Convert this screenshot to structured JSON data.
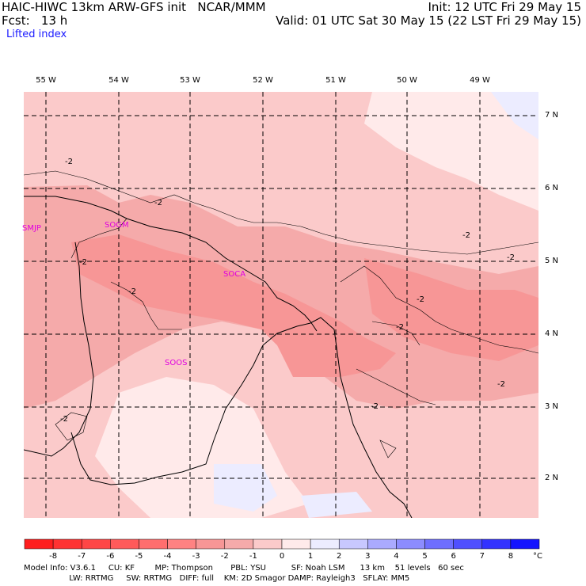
{
  "header": {
    "line1_left": "HAIC-HIWC 13km ARW-GFS init   NCAR/MMM",
    "line1_right": "Init: 12 UTC Fri 29 May 15",
    "line2_left": "Fcst:   13 h",
    "line2_right": "Valid: 01 UTC Sat 30 May 15 (22 LST Fri 29 May 15)",
    "field": "Lifted index"
  },
  "map": {
    "longitude_labels": [
      "55 W",
      "54 W",
      "53 W",
      "52 W",
      "51 W",
      "50 W",
      "49 W"
    ],
    "latitude_labels": [
      "7 N",
      "6 N",
      "5 N",
      "4 N",
      "3 N",
      "2 N"
    ],
    "stations": [
      "SMJP",
      "SOGM",
      "SOCA",
      "SOOS"
    ],
    "contour_label": "-2"
  },
  "colorbar": {
    "ticks": [
      "-8",
      "-7",
      "-6",
      "-5",
      "-4",
      "-3",
      "-2",
      "-1",
      "0",
      "1",
      "2",
      "3",
      "4",
      "5",
      "6",
      "7",
      "8"
    ],
    "unit": "°C",
    "colors": [
      "#ff1e1e",
      "#ff3232",
      "#ff4646",
      "#ff5a5a",
      "#ff6e6e",
      "#ff8282",
      "#f79696",
      "#f5aaaa",
      "#fbcaca",
      "#ffeaea",
      "#ececff",
      "#c8c8ff",
      "#aaaaff",
      "#8c8cff",
      "#6e6eff",
      "#5050ff",
      "#3232ff",
      "#1414ff"
    ]
  },
  "footer": {
    "line1": "Model Info: V3.6.1     CU: KF        MP: Thompson       PBL: YSU          SF: Noah LSM      13 km    51 levels   60 sec",
    "line2": "                  LW: RRTMG     SW: RRTMG   DIFF: full    KM: 2D Smagor DAMP: Rayleigh3   SFLAY: MM5"
  }
}
